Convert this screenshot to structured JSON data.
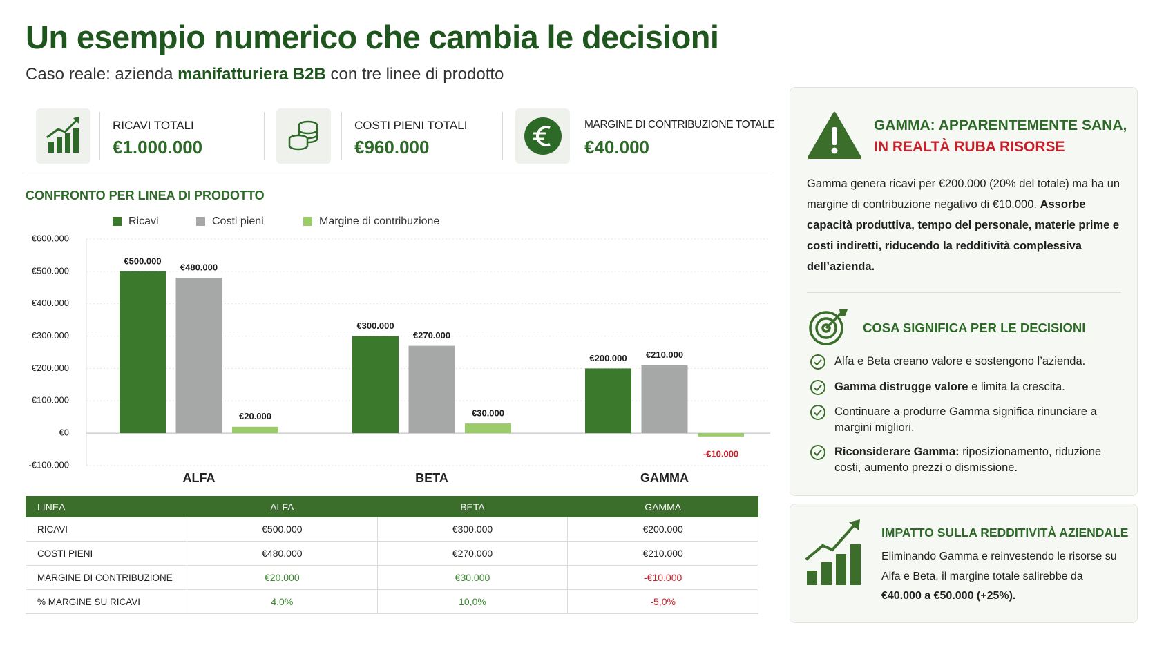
{
  "header": {
    "title": "Un esempio numerico che cambia le decisioni",
    "subtitle": {
      "before": "Caso reale: azienda ",
      "emphasis": "manifatturiera B2B",
      "after": " con tre linee di prodotto"
    }
  },
  "kpis": [
    {
      "label": "RICAVI TOTALI",
      "value": "€1.000.000"
    },
    {
      "label": "COSTI PIENI TOTALI",
      "value": "€960.000"
    },
    {
      "label": "MARGINE DI CONTRIBUZIONE TOTALE",
      "value": "€40.000"
    }
  ],
  "chart_data": {
    "type": "bar",
    "title": "CONFRONTO PER LINEA DI PRODOTTO",
    "categories": [
      "ALFA",
      "BETA",
      "GAMMA"
    ],
    "series": [
      {
        "name": "Ricavi",
        "color": "#3b7a2c",
        "values": [
          500000,
          300000,
          200000
        ],
        "value_labels": [
          "€500.000",
          "€300.000",
          "€200.000"
        ]
      },
      {
        "name": "Costi pieni",
        "color": "#a5a8a7",
        "values": [
          480000,
          270000,
          210000
        ],
        "value_labels": [
          "€480.000",
          "€270.000",
          "€210.000"
        ]
      },
      {
        "name": "Margine di contribuzione",
        "color": "#9ccb6a",
        "values": [
          20000,
          30000,
          -10000
        ],
        "value_labels": [
          "€20.000",
          "€30.000",
          "-€10.000"
        ]
      }
    ],
    "ylim": [
      -100000,
      600000
    ],
    "yticks": [
      {
        "value": -100000,
        "label": "-€100.000"
      },
      {
        "value": 0,
        "label": "€0"
      },
      {
        "value": 100000,
        "label": "€100.000"
      },
      {
        "value": 200000,
        "label": "€200.000"
      },
      {
        "value": 300000,
        "label": "€300.000"
      },
      {
        "value": 400000,
        "label": "€400.000"
      },
      {
        "value": 500000,
        "label": "€500.000"
      },
      {
        "value": 600000,
        "label": "€600.000"
      }
    ],
    "grid": true,
    "legend": "top"
  },
  "table": {
    "header": [
      "LINEA",
      "ALFA",
      "BETA",
      "GAMMA"
    ],
    "rows": [
      [
        "RICAVI",
        "€500.000",
        "€300.000",
        "€200.000"
      ],
      [
        "COSTI PIENI",
        "€480.000",
        "€270.000",
        "€210.000"
      ],
      [
        "MARGINE DI CONTRIBUZIONE",
        "€20.000",
        "€30.000",
        "-€10.000"
      ],
      [
        "% MARGINE SU RICAVI",
        "4,0%",
        "10,0%",
        "-5,0%"
      ]
    ]
  },
  "warning": {
    "title": "GAMMA: APPARENTEMENTE SANA,",
    "title_alert": "IN REALTÀ RUBA RISORSE",
    "body": "Gamma genera ricavi per €200.000 (20% del totale) ma ha un margine di contribuzione negativo di €10.000.",
    "body_emphasis": "Assorbe capacità produttiva, tempo del personale, materie prime e costi indiretti, riducendo la redditività complessiva dell’azienda."
  },
  "decisions": {
    "title": "COSA SIGNIFICA PER LE DECISIONI",
    "items": [
      {
        "text": "Alfa e Beta creano valore e sostengono l’azienda."
      },
      {
        "emphasis": "Gamma distrugge valore",
        "text": " e limita la crescita."
      },
      {
        "text": "Continuare a produrre Gamma significa rinunciare a margini migliori."
      },
      {
        "emphasis": "Riconsiderare Gamma:",
        "text": " riposizionamento, riduzione costi, aumento prezzi o dismissione."
      }
    ]
  },
  "impact": {
    "title": "IMPATTO SULLA REDDITIVITÀ AZIENDALE",
    "text": "Eliminando Gamma e reinvestendo le risorse su Alfa e Beta, il margine totale salirebbe da ",
    "emphasis": "€40.000 a €50.000 (+25%)."
  }
}
